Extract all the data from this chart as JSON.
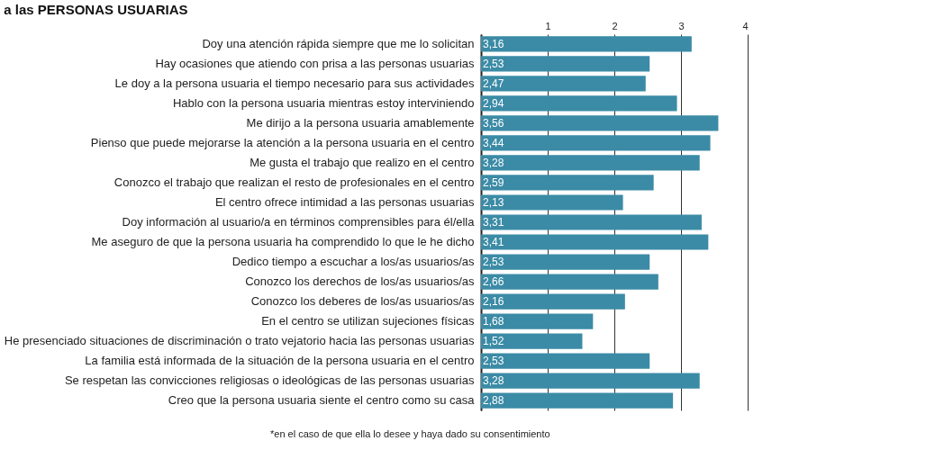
{
  "chart_data": {
    "type": "bar",
    "orientation": "horizontal",
    "title": "a las PERSONAS USUARIAS",
    "categories": [
      "Doy una atención rápida siempre que me lo solicitan",
      "Hay ocasiones que atiendo con prisa a las personas usuarias",
      "Le doy a la persona usuaria el tiempo necesario para sus actividades",
      "Hablo con la persona usuaria mientras estoy interviniendo",
      "Me dirijo a la persona usuaria amablemente",
      "Pienso que puede mejorarse la atención a la persona usuaria en el centro",
      "Me gusta el trabajo que realizo en el centro",
      "Conozco el trabajo que realizan el resto de profesionales en el centro",
      "El centro ofrece intimidad a las personas usuarias",
      "Doy información al usuario/a en términos comprensibles para él/ella",
      "Me aseguro de que la persona usuaria ha comprendido lo que le he dicho",
      "Dedico tiempo a escuchar a los/as usuarios/as",
      "Conozco los derechos de los/as usuarios/as",
      "Conozco los deberes de los/as usuarios/as",
      "En el centro se utilizan sujeciones físicas",
      "He presenciado situaciones de discriminación o trato vejatorio hacia las personas usuarias",
      "La familia está informada de la situación de la persona usuaria en el centro",
      "Se respetan las convicciones religiosas o ideológicas de las personas usuarias",
      "Creo que la persona usuaria siente el centro como su casa"
    ],
    "values": [
      3.16,
      2.53,
      2.47,
      2.94,
      3.56,
      3.44,
      3.28,
      2.59,
      2.13,
      3.31,
      3.41,
      2.53,
      2.66,
      2.16,
      1.68,
      1.52,
      2.53,
      3.28,
      2.88
    ],
    "value_labels": [
      "3,16",
      "2,53",
      "2,47",
      "2,94",
      "3,56",
      "3,44",
      "3,28",
      "2,59",
      "2,13",
      "3,31",
      "3,41",
      "2,53",
      "2,66",
      "2,16",
      "1,68",
      "1,52",
      "2,53",
      "3,28",
      "2,88"
    ],
    "color": "#3b8ba6",
    "xlim": [
      0,
      4
    ],
    "xticks": [
      {
        "value": 0,
        "label": null
      },
      1,
      2,
      3,
      4
    ],
    "grid": "x",
    "annotations": [
      "*en el caso de que ella lo desee y haya dado su consentimiento"
    ]
  }
}
